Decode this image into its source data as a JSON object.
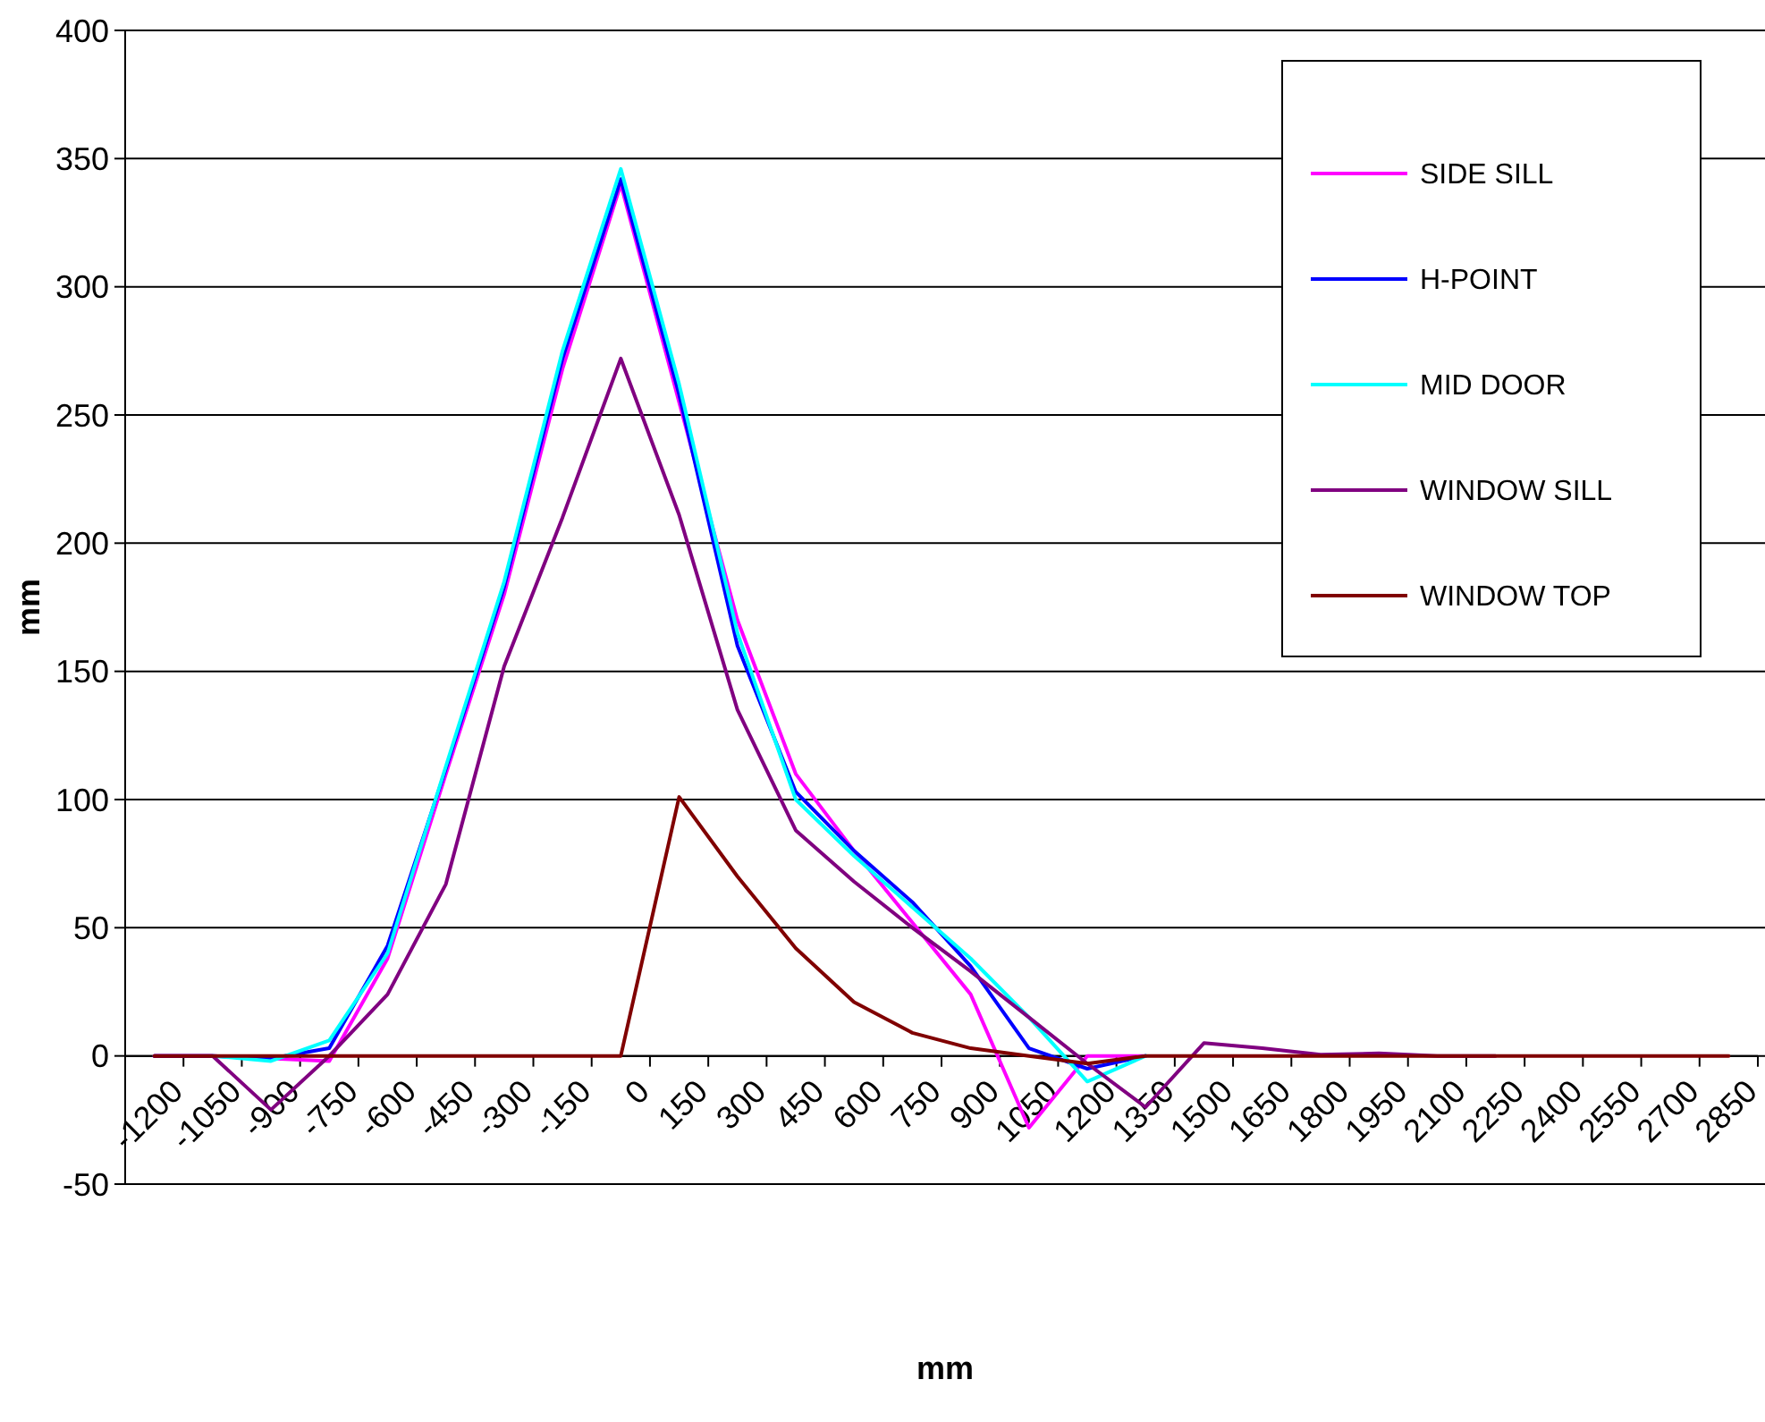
{
  "chart_data": {
    "type": "line",
    "xlabel": "mm",
    "ylabel": "mm",
    "categories": [
      "-1200",
      "-1050",
      "-900",
      "-750",
      "-600",
      "-450",
      "-300",
      "-150",
      "0",
      "150",
      "300",
      "450",
      "600",
      "750",
      "900",
      "1050",
      "1200",
      "1350",
      "1500",
      "1650",
      "1800",
      "1950",
      "2100",
      "2250",
      "2400",
      "2550",
      "2700",
      "2850"
    ],
    "series": [
      {
        "name": "SIDE SILL",
        "color": "#ff00ff",
        "values": [
          0,
          0,
          -1,
          -2,
          38,
          110,
          180,
          268,
          340,
          255,
          170,
          110,
          80,
          52,
          24,
          -28,
          0,
          0,
          null,
          null,
          null,
          null,
          null,
          null,
          null,
          null,
          null,
          null
        ]
      },
      {
        "name": "H-POINT",
        "color": "#0000ff",
        "values": [
          0,
          0,
          -1,
          3,
          43,
          112,
          183,
          272,
          342,
          258,
          160,
          103,
          80,
          60,
          35,
          3,
          -5,
          0,
          null,
          null,
          null,
          null,
          null,
          null,
          null,
          null,
          null,
          null
        ]
      },
      {
        "name": "MID DOOR",
        "color": "#00ffff",
        "values": [
          null,
          0,
          -2,
          6,
          40,
          113,
          185,
          275,
          346,
          262,
          165,
          100,
          78,
          58,
          38,
          15,
          -10,
          0,
          null,
          null,
          null,
          null,
          null,
          null,
          null,
          null,
          null,
          null
        ]
      },
      {
        "name": "WINDOW SILL",
        "color": "#800080",
        "values": [
          0,
          0,
          -21,
          0,
          24,
          67,
          152,
          210,
          272,
          211,
          135,
          88,
          68,
          50,
          33,
          15,
          -3,
          -20,
          5,
          3,
          0.5,
          1,
          0,
          0,
          null,
          null,
          null,
          null
        ]
      },
      {
        "name": "WINDOW TOP",
        "color": "#800000",
        "values": [
          0,
          0,
          0,
          0,
          0,
          0,
          0,
          0,
          0,
          101,
          70,
          42,
          21,
          9,
          3,
          0,
          -3,
          0,
          0,
          0,
          0,
          0,
          0,
          0,
          0,
          0,
          0,
          0
        ]
      }
    ],
    "ylim": [
      -50,
      400
    ],
    "yticks": [
      -50,
      0,
      50,
      100,
      150,
      200,
      250,
      300,
      350,
      400
    ],
    "grid": "y",
    "legend": "top right",
    "line_style": "solid",
    "marker": "none"
  }
}
